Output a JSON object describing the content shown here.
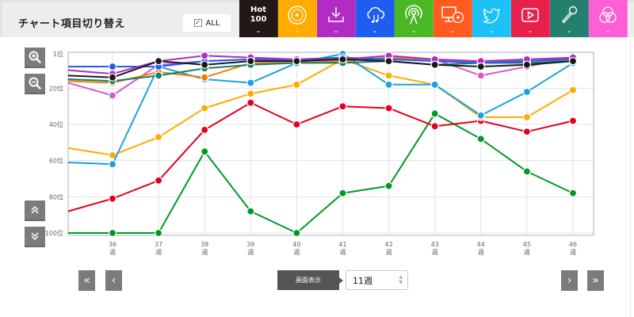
{
  "header": {
    "title": "チャート項目切り替え",
    "all_label": "ALL",
    "all_checked": true
  },
  "tabs": [
    {
      "id": "hot100",
      "label_line1": "Hot",
      "label_line2": "100",
      "icon": "hot100-text",
      "color": "#231815"
    },
    {
      "id": "sales",
      "icon": "cd-disc-icon",
      "color": "#ffab00"
    },
    {
      "id": "download",
      "icon": "download-icon",
      "color": "#b02cc3"
    },
    {
      "id": "streaming",
      "icon": "cloud-music-icon",
      "color": "#1d5df2"
    },
    {
      "id": "radio",
      "icon": "broadcast-icon",
      "color": "#4ab824"
    },
    {
      "id": "lookup",
      "icon": "pc-disc-icon",
      "color": "#ff5a20"
    },
    {
      "id": "twitter",
      "icon": "twitter-bird-icon",
      "color": "#1cc2f7"
    },
    {
      "id": "video",
      "icon": "youtube-play-icon",
      "color": "#e8204c"
    },
    {
      "id": "karaoke",
      "icon": "microphone-icon",
      "color": "#257f6e"
    },
    {
      "id": "other",
      "icon": "venn-circles-icon",
      "color": "#ff5fd6"
    }
  ],
  "side_controls": {
    "zoom_in": "zoom-in-icon",
    "zoom_out": "zoom-out-icon",
    "scroll_up": "double-chevron-up-icon",
    "scroll_down": "double-chevron-down-icon"
  },
  "pager": {
    "first": "«",
    "prev": "‹",
    "next": "›",
    "last": "»",
    "display_label": "画面表示",
    "weeks_value": "11週"
  },
  "chart_data": {
    "type": "line",
    "title": "",
    "xlabel": "",
    "ylabel": "",
    "categories": [
      "36\n週",
      "37\n週",
      "38\n週",
      "39\n週",
      "40\n週",
      "41\n週",
      "42\n週",
      "43\n週",
      "44\n週",
      "45\n週",
      "46\n週"
    ],
    "x": [
      36,
      37,
      38,
      39,
      40,
      41,
      42,
      43,
      44,
      45,
      46
    ],
    "x_tick_labels": [
      "36",
      "37",
      "38",
      "39",
      "40",
      "41",
      "42",
      "43",
      "44",
      "45",
      "46"
    ],
    "x_tick_suffix": "週",
    "y_tick_labels": [
      "1位",
      "20位",
      "40位",
      "60位",
      "80位",
      "100位"
    ],
    "y_ticks": [
      1,
      20,
      40,
      60,
      80,
      100
    ],
    "ylim": [
      1,
      100
    ],
    "y_inverted": true,
    "grid": true,
    "legend": "none",
    "series": [
      {
        "name": "Hot 100",
        "color": "#1a1a1a",
        "values": [
          14,
          5,
          7,
          5,
          5,
          4,
          5,
          7,
          8,
          7,
          5
        ],
        "x_start": 36
      },
      {
        "name": "Sales",
        "color": "#ffab00",
        "values": [
          57,
          47,
          31,
          23,
          18,
          4,
          13,
          18,
          36,
          36,
          21
        ],
        "x_start": 36
      },
      {
        "name": "Download",
        "color": "#b02cc3",
        "values": [
          12,
          5,
          2,
          3,
          4,
          4,
          2,
          4,
          5,
          4,
          3
        ],
        "x_start": 36
      },
      {
        "name": "Streaming",
        "color": "#1d5df2",
        "values": [
          8,
          8,
          5,
          4,
          4,
          3,
          4,
          5,
          6,
          5,
          4
        ],
        "x_start": 36
      },
      {
        "name": "Radio",
        "color": "#009926",
        "values": [
          100,
          100,
          55,
          88,
          100,
          78,
          74,
          34,
          48,
          66,
          78
        ],
        "x_start": 36
      },
      {
        "name": "Look-up",
        "color": "#f57c00",
        "values": [
          17,
          11,
          14,
          6,
          6,
          5,
          3,
          4,
          6,
          4,
          4
        ],
        "x_start": 36
      },
      {
        "name": "Twitter",
        "color": "#1ba1e2",
        "values": [
          62,
          8,
          15,
          17,
          6,
          1,
          18,
          18,
          35,
          22,
          6
        ],
        "x_start": 36
      },
      {
        "name": "Video",
        "color": "#e2001a",
        "values": [
          81,
          71,
          43,
          28,
          40,
          30,
          31,
          41,
          38,
          44,
          38
        ],
        "x_start": 36
      },
      {
        "name": "Karaoke",
        "color": "#147f6a",
        "values": [
          16,
          13,
          9,
          7,
          6,
          6,
          5,
          7,
          6,
          6,
          5
        ],
        "x_start": 36
      },
      {
        "name": "Other",
        "color": "#d65ac8",
        "values": [
          24,
          7,
          5,
          4,
          5,
          4,
          4,
          4,
          13,
          8,
          3
        ],
        "x_start": 36
      }
    ],
    "leading_segment_y_at_left_edge": {
      "Sales": 53,
      "Radio": 100,
      "Video": 88,
      "Twitter": 61,
      "Hot 100": 13,
      "Download": 10,
      "Streaming": 8,
      "Look-up": 16,
      "Karaoke": 15,
      "Other": 17
    }
  }
}
